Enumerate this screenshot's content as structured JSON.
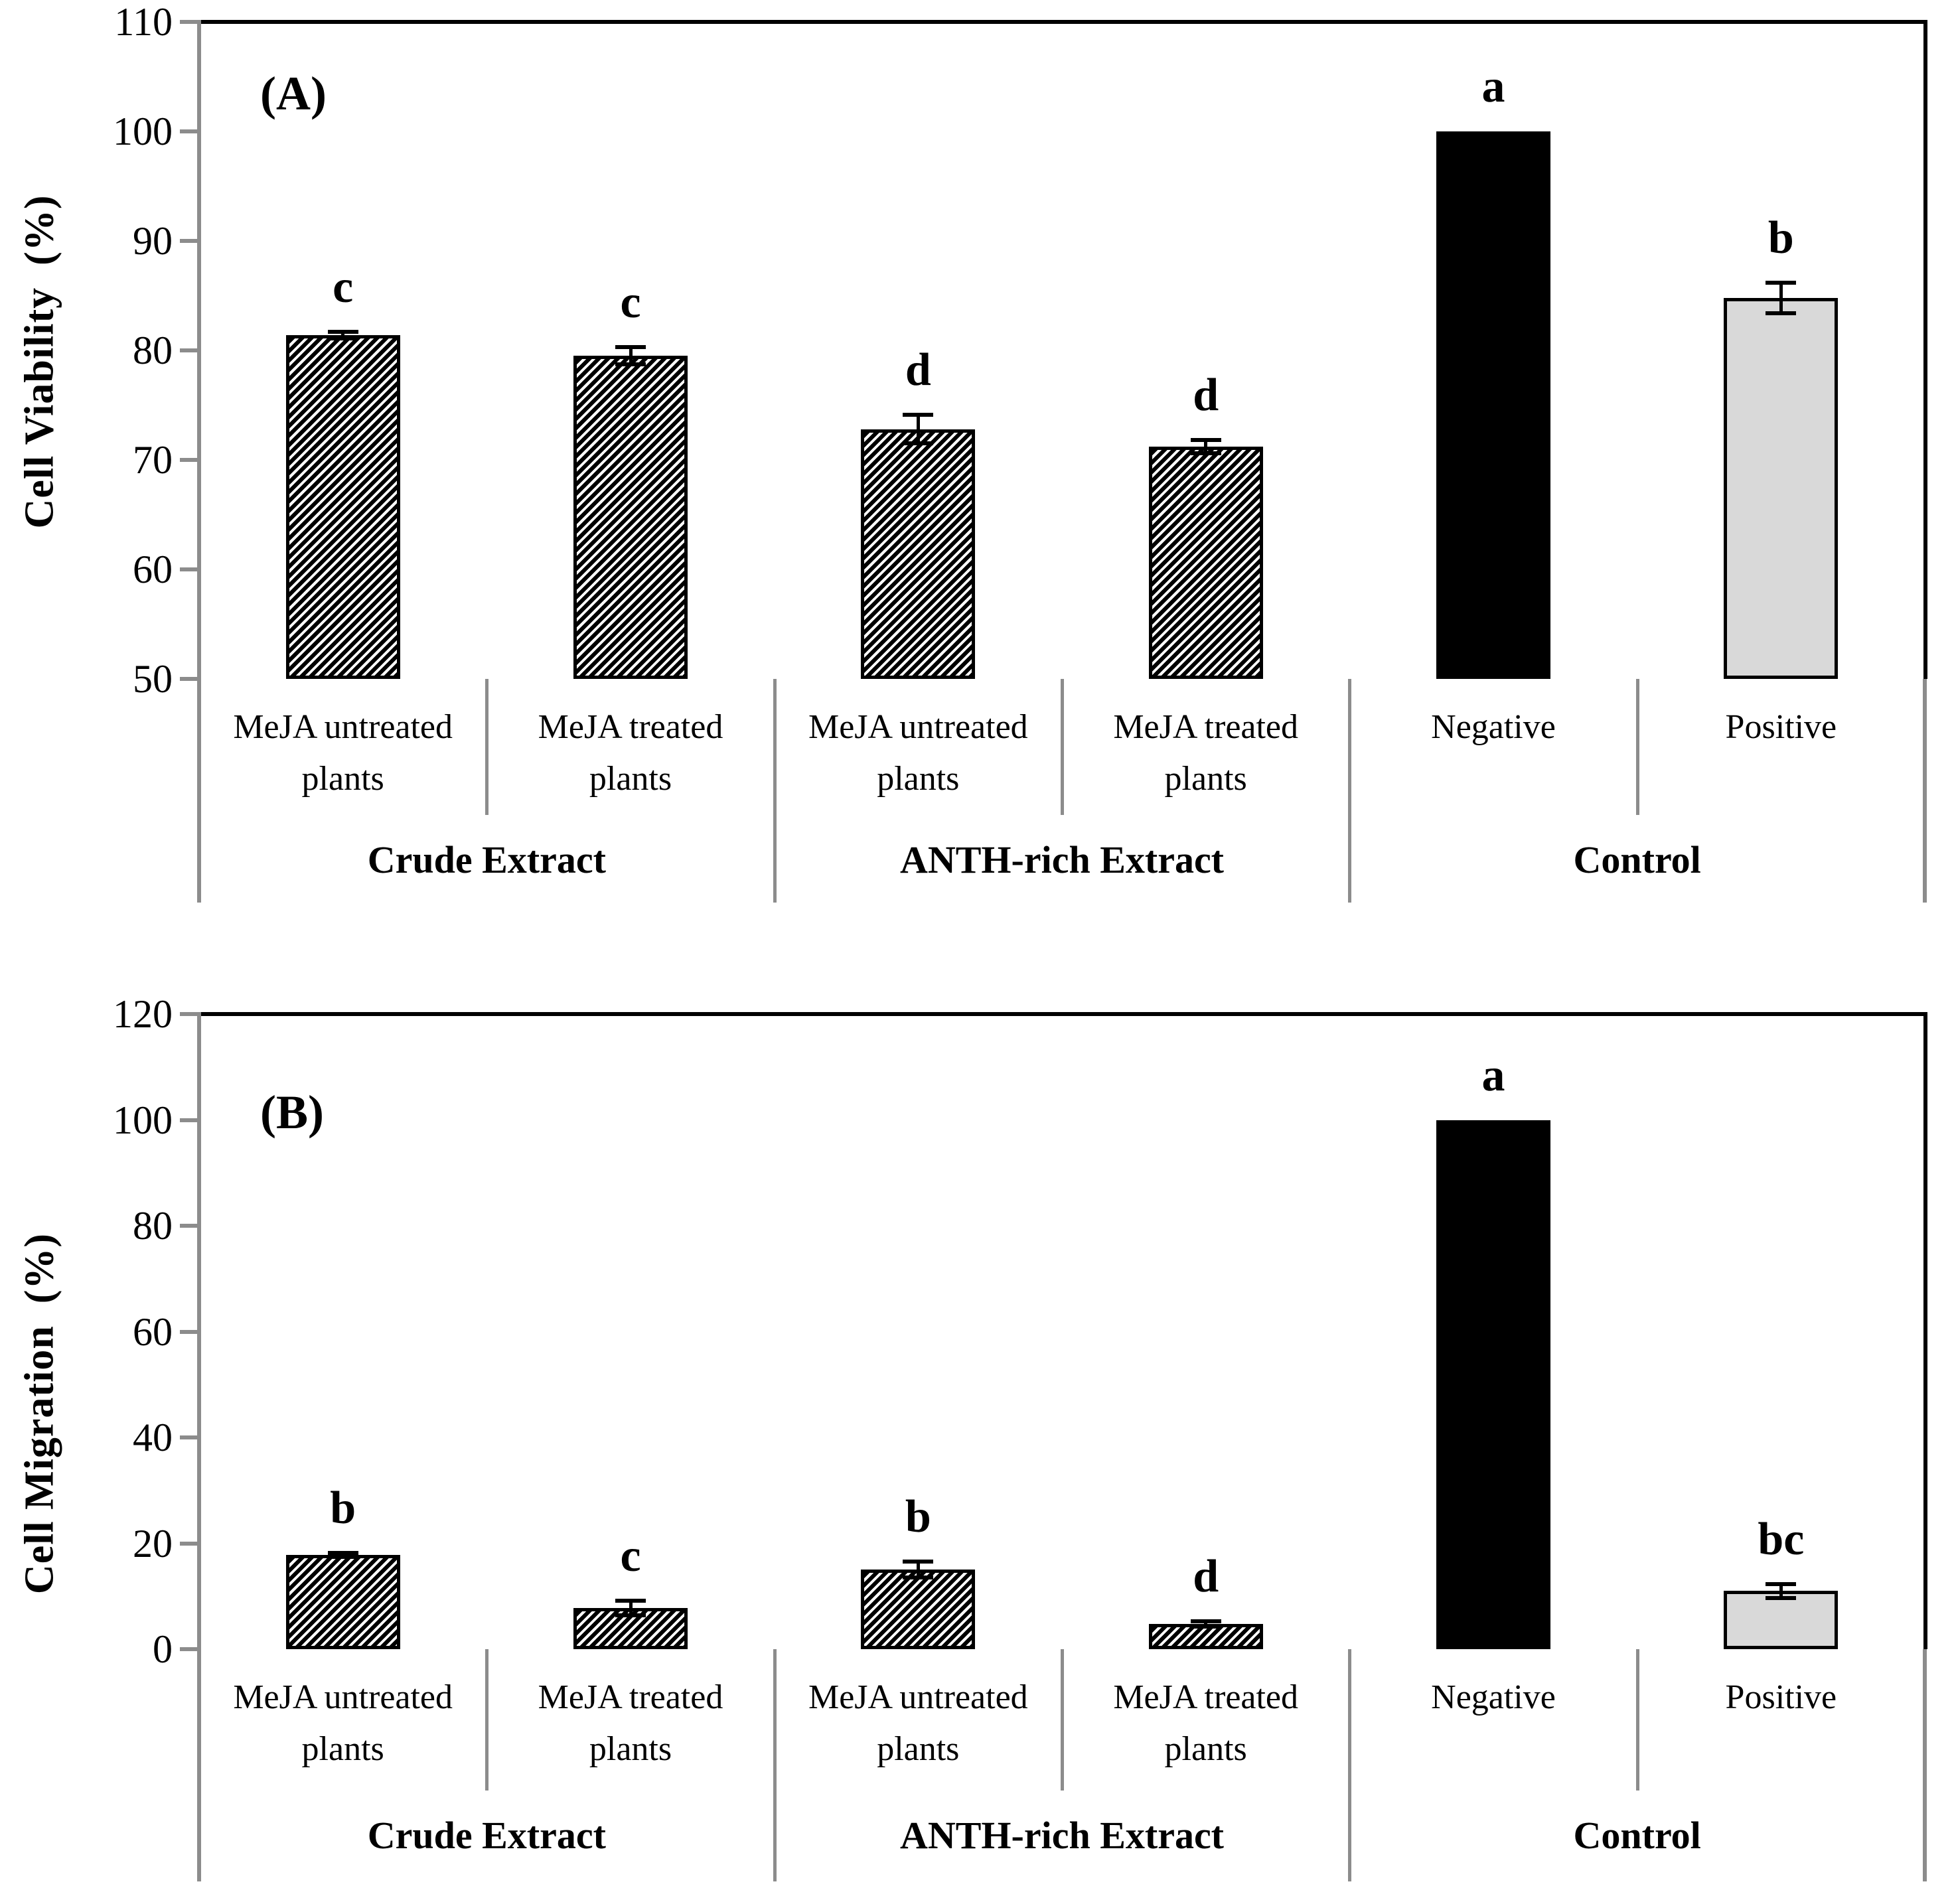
{
  "figure": {
    "colors": {
      "axis_gray": "#8c8c8c",
      "frame_black": "#000000",
      "bar_gray_fill": "#d9d9d9",
      "bar_black_fill": "#000000",
      "hatch_foreground": "#000000",
      "hatch_background": "#ffffff",
      "text": "#000000"
    }
  },
  "chart_data": [
    {
      "type": "bar",
      "panel_label": "(A)",
      "ylabel": "Cell Viability  (%)",
      "xlabel": "",
      "ylim": [
        50,
        110
      ],
      "ytick_step": 10,
      "ytick_labels": [
        "110",
        "100",
        "90",
        "80",
        "70",
        "60",
        "50"
      ],
      "grid": false,
      "legend": "none",
      "groups": [
        {
          "label": "Crude Extract",
          "bars": [
            {
              "category": "MeJA untreated\nplants",
              "value": 81.4,
              "error": 0.3,
              "letter": "c",
              "fill": "hatch"
            },
            {
              "category": "MeJA treated\nplants",
              "value": 79.5,
              "error": 0.8,
              "letter": "c",
              "fill": "hatch"
            }
          ]
        },
        {
          "label": "ANTH-rich Extract",
          "bars": [
            {
              "category": "MeJA untreated\nplants",
              "value": 72.8,
              "error": 1.3,
              "letter": "d",
              "fill": "hatch"
            },
            {
              "category": "MeJA treated\nplants",
              "value": 71.2,
              "error": 0.6,
              "letter": "d",
              "fill": "hatch"
            }
          ]
        },
        {
          "label": "Control",
          "bars": [
            {
              "category": "Negative",
              "value": 100,
              "error": 0,
              "letter": "a",
              "fill": "black"
            },
            {
              "category": "Positive",
              "value": 84.8,
              "error": 1.4,
              "letter": "b",
              "fill": "gray"
            }
          ]
        }
      ]
    },
    {
      "type": "bar",
      "panel_label": "(B)",
      "ylabel": "Cell Migration  (%)",
      "xlabel": "",
      "ylim": [
        0,
        120
      ],
      "ytick_step": 20,
      "ytick_labels": [
        "120",
        "100",
        "80",
        "60",
        "40",
        "20",
        "0"
      ],
      "grid": false,
      "legend": "none",
      "groups": [
        {
          "label": "Crude Extract",
          "bars": [
            {
              "category": "MeJA untreated\nplants",
              "value": 17.8,
              "error": 0.4,
              "letter": "b",
              "fill": "hatch"
            },
            {
              "category": "MeJA treated\nplants",
              "value": 7.8,
              "error": 1.4,
              "letter": "c",
              "fill": "hatch"
            }
          ]
        },
        {
          "label": "ANTH-rich Extract",
          "bars": [
            {
              "category": "MeJA untreated\nplants",
              "value": 15.0,
              "error": 1.5,
              "letter": "b",
              "fill": "hatch"
            },
            {
              "category": "MeJA treated\nplants",
              "value": 4.8,
              "error": 0.5,
              "letter": "d",
              "fill": "hatch"
            }
          ]
        },
        {
          "label": "Control",
          "bars": [
            {
              "category": "Negative",
              "value": 100,
              "error": 0,
              "letter": "a",
              "fill": "black"
            },
            {
              "category": "Positive",
              "value": 11.0,
              "error": 1.3,
              "letter": "bc",
              "fill": "gray"
            }
          ]
        }
      ]
    }
  ]
}
